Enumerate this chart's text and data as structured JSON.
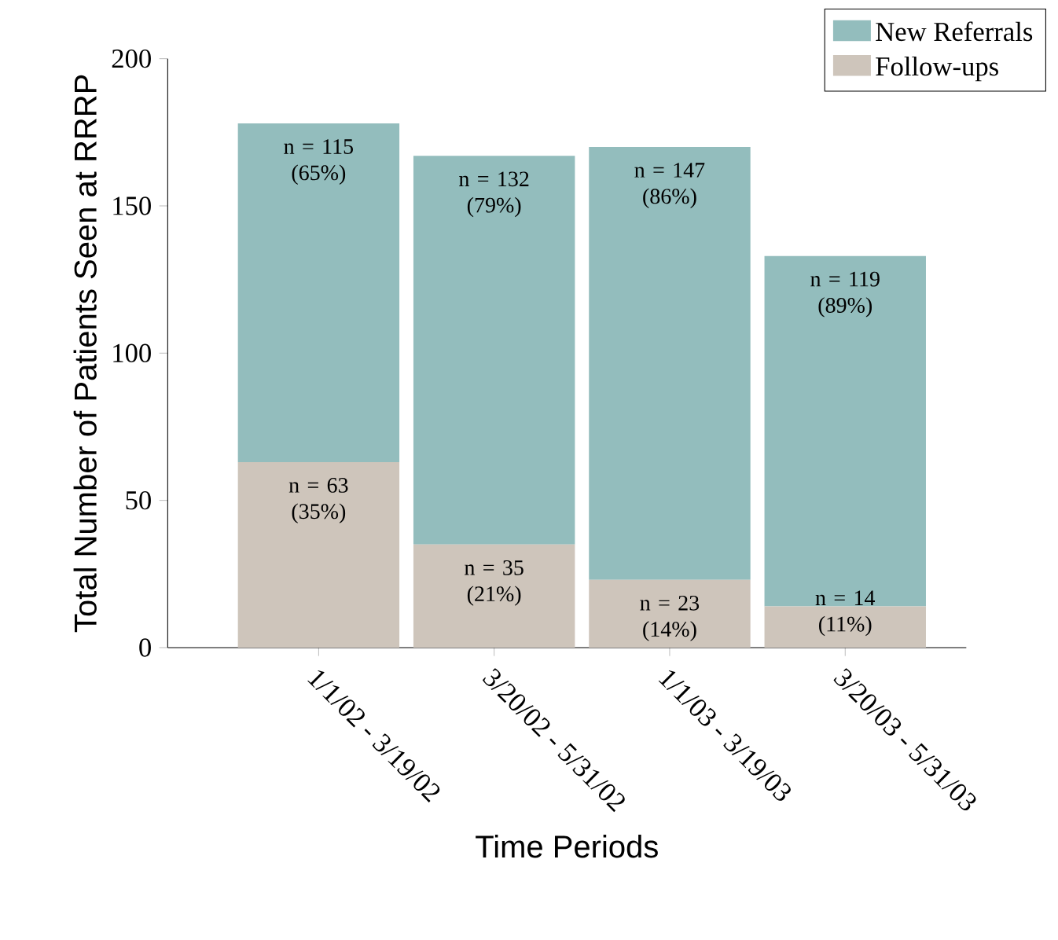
{
  "chart_data": {
    "type": "bar",
    "stacked": true,
    "xlabel": "Time Periods",
    "ylabel": "Total Number of Patients Seen at RRRP",
    "categories": [
      "1/1/02 - 3/19/02",
      "3/20/02 - 5/31/02",
      "1/1/03 - 3/19/03",
      "3/20/03 - 5/31/03"
    ],
    "series": [
      {
        "name": "Follow-ups",
        "color": "#cec5bb",
        "values": [
          63,
          35,
          23,
          14
        ],
        "value_labels": [
          "n = 63 (35%)",
          "n = 35 (21%)",
          "n = 23 (14%)",
          "n = 14 (11%)"
        ]
      },
      {
        "name": "New Referrals",
        "color": "#93bdbd",
        "values": [
          115,
          132,
          147,
          119
        ],
        "value_labels": [
          "n = 115 (65%)",
          "n = 132 (79%)",
          "n = 147 (86%)",
          "n = 119 (89%)"
        ]
      }
    ],
    "ylim": [
      0,
      200
    ],
    "yticks": [
      0,
      50,
      100,
      150,
      200
    ],
    "legend": "top right"
  }
}
